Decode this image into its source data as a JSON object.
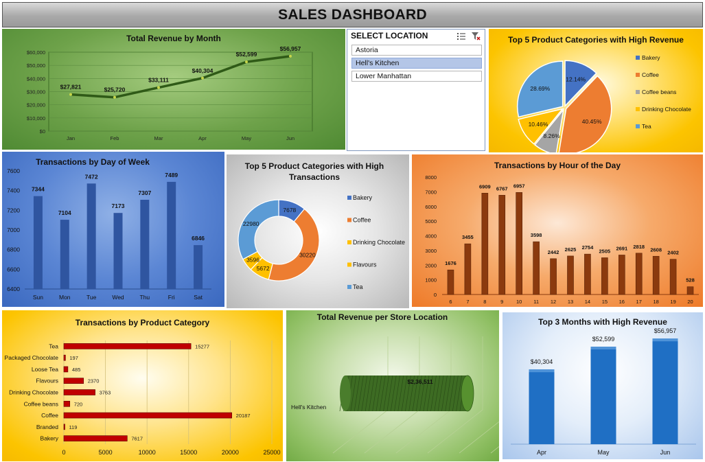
{
  "dashboard": {
    "title": "SALES DASHBOARD"
  },
  "slicer": {
    "title": "SELECT LOCATION",
    "items": [
      {
        "label": "Astoria",
        "selected": false
      },
      {
        "label": "Hell's Kitchen",
        "selected": true
      },
      {
        "label": "Lower Manhattan",
        "selected": false
      }
    ],
    "icons": [
      "multi-select-icon",
      "clear-filter-icon"
    ]
  },
  "colors": {
    "bakery": "#4472c4",
    "coffee": "#ed7d31",
    "coffee_beans": "#a5a5a5",
    "drinking_chocolate": "#ffc000",
    "flavours": "#ffc000",
    "tea": "#5b9bd5",
    "dow_bar": "#2f55a0",
    "hour_bar": "#8b3a0e",
    "prodcat_bar": "#c00000",
    "top3_bar": "#1f6fc4",
    "line": "#2f5a17",
    "cylinder": "#3d6b23"
  },
  "chart_data": [
    {
      "id": "revenue_month",
      "type": "line",
      "title": "Total Revenue by Month",
      "categories": [
        "Jan",
        "Feb",
        "Mar",
        "Apr",
        "May",
        "Jun"
      ],
      "values": [
        27821,
        25720,
        33111,
        40304,
        52599,
        56957
      ],
      "data_labels": [
        "$27,821",
        "$25,720",
        "$33,111",
        "$40,304",
        "$52,599",
        "$56,957"
      ],
      "y_ticks": [
        "$0",
        "$10,000",
        "$20,000",
        "$30,000",
        "$40,000",
        "$50,000",
        "$60,000"
      ],
      "ylim": [
        0,
        60000
      ],
      "grid": true
    },
    {
      "id": "pie_revenue",
      "type": "pie",
      "title": "Top 5 Product Categories with High Revenue",
      "categories": [
        "Bakery",
        "Coffee",
        "Coffee beans",
        "Drinking Chocolate",
        "Tea"
      ],
      "values": [
        12.14,
        40.45,
        8.26,
        10.46,
        28.69
      ],
      "data_labels": [
        "12.14%",
        "40.45%",
        "8.26%",
        "10.46%",
        "28.69%"
      ],
      "legend": "right"
    },
    {
      "id": "dow",
      "type": "bar",
      "title": "Transactions by Day of Week",
      "categories": [
        "Sun",
        "Mon",
        "Tue",
        "Wed",
        "Thu",
        "Fri",
        "Sat"
      ],
      "values": [
        7344,
        7104,
        7472,
        7173,
        7307,
        7489,
        6846
      ],
      "y_ticks": [
        "6400",
        "6600",
        "6800",
        "7000",
        "7200",
        "7400",
        "7600"
      ],
      "ylim": [
        6400,
        7600
      ],
      "grid": false
    },
    {
      "id": "donut_transactions",
      "type": "pie",
      "title": "Top 5 Product Categories with High Transactions",
      "categories": [
        "Bakery",
        "Coffee",
        "Drinking Chocolate",
        "Flavours",
        "Tea"
      ],
      "values": [
        7678,
        30220,
        5672,
        3596,
        22980
      ],
      "data_labels": [
        "7678",
        "30220",
        "5672",
        "3596",
        "22980"
      ],
      "legend": "right"
    },
    {
      "id": "hour",
      "type": "bar",
      "title": "Transactions by Hour of the Day",
      "categories": [
        "6",
        "7",
        "8",
        "9",
        "10",
        "11",
        "12",
        "13",
        "14",
        "15",
        "16",
        "17",
        "18",
        "19",
        "20"
      ],
      "values": [
        1676,
        3455,
        6909,
        6767,
        6957,
        3598,
        2442,
        2625,
        2754,
        2505,
        2691,
        2818,
        2608,
        2402,
        528
      ],
      "y_ticks": [
        "0",
        "1000",
        "2000",
        "3000",
        "4000",
        "5000",
        "6000",
        "7000",
        "8000"
      ],
      "ylim": [
        0,
        8000
      ],
      "grid": false
    },
    {
      "id": "prodcat",
      "type": "bar",
      "orientation": "horizontal",
      "title": "Transactions by Product Category",
      "categories": [
        "Tea",
        "Packaged Chocolate",
        "Loose Tea",
        "Flavours",
        "Drinking Chocolate",
        "Coffee beans",
        "Coffee",
        "Branded",
        "Bakery"
      ],
      "values": [
        15277,
        197,
        485,
        2370,
        3763,
        720,
        20187,
        119,
        7617
      ],
      "x_ticks": [
        "0",
        "5000",
        "10000",
        "15000",
        "20000",
        "25000"
      ],
      "xlim": [
        0,
        25000
      ],
      "grid": true
    },
    {
      "id": "store",
      "type": "bar",
      "orientation": "horizontal",
      "title": "Total Revenue per Store Location",
      "categories": [
        "Hell's Kitchen"
      ],
      "values": [
        236511
      ],
      "data_labels": [
        "$2,36,511"
      ]
    },
    {
      "id": "top3",
      "type": "bar",
      "title": "Top 3 Months with High Revenue",
      "categories": [
        "Apr",
        "May",
        "Jun"
      ],
      "values": [
        40304,
        52599,
        56957
      ],
      "data_labels": [
        "$40,304",
        "$52,599",
        "$56,957"
      ],
      "grid": false
    }
  ]
}
